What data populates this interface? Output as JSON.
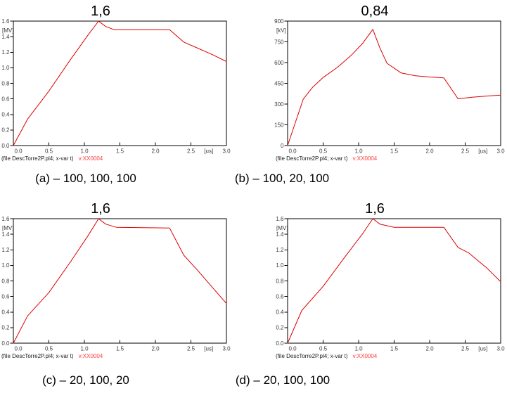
{
  "figure": {
    "background": "#ffffff",
    "trace_color": "#dd0000",
    "variable_text_color": "#ff3b3b",
    "axis_color": "#000000",
    "tick_label_color": "#3a3a3a"
  },
  "chart_data": [
    {
      "id": "a",
      "type": "line",
      "title": "1,6",
      "peak_label": "1,6",
      "y_unit": "[MV]",
      "x_unit": "[us]",
      "xlim": [
        0,
        3
      ],
      "ylim": [
        0,
        1.6
      ],
      "x_tick_values": [
        0,
        0.5,
        1,
        1.5,
        2,
        2.5,
        3
      ],
      "x_tick_labels": [
        "0.0",
        "0.5",
        "1.0",
        "1.5",
        "2.0",
        "2.5",
        "3.0"
      ],
      "y_tick_values": [
        0,
        0.2,
        0.4,
        0.6,
        0.8,
        1.0,
        1.2,
        1.4,
        1.6
      ],
      "y_tick_labels": [
        "0.0",
        "0.2",
        "0.4",
        "0.6",
        "0.8",
        "1.0",
        "1.2",
        "1.4",
        "1.6"
      ],
      "grid": false,
      "legend": "none",
      "file_caption": "(file DescTorre2P.pl4; x-var t)",
      "variable_caption": "v:XX0004",
      "series": [
        {
          "name": "v:XX0004",
          "points": [
            [
              0,
              0
            ],
            [
              0.2,
              0.34
            ],
            [
              0.5,
              0.7
            ],
            [
              0.8,
              1.1
            ],
            [
              1.05,
              1.42
            ],
            [
              1.2,
              1.6
            ],
            [
              1.3,
              1.53
            ],
            [
              1.42,
              1.49
            ],
            [
              1.75,
              1.49
            ],
            [
              2.2,
              1.49
            ],
            [
              2.4,
              1.33
            ],
            [
              2.55,
              1.27
            ],
            [
              2.8,
              1.17
            ],
            [
              3.0,
              1.08
            ]
          ]
        }
      ]
    },
    {
      "id": "b",
      "type": "line",
      "title": "0,84",
      "peak_label": "0,84",
      "y_unit": "[kV]",
      "x_unit": "[us]",
      "xlim": [
        0,
        3
      ],
      "ylim": [
        0,
        900
      ],
      "x_tick_values": [
        0,
        0.5,
        1,
        1.5,
        2,
        2.5,
        3
      ],
      "x_tick_labels": [
        "0.0",
        "0.5",
        "1.0",
        "1.5",
        "2.0",
        "2.5",
        "3.0"
      ],
      "y_tick_values": [
        0,
        150,
        300,
        450,
        600,
        750,
        900
      ],
      "y_tick_labels": [
        "0",
        "150",
        "300",
        "450",
        "600",
        "750",
        "900"
      ],
      "grid": false,
      "legend": "none",
      "file_caption": "(file DescTorre2P.pl4; x-var t)",
      "variable_caption": "v:XX0004",
      "series": [
        {
          "name": "v:XX0004",
          "points": [
            [
              0,
              0
            ],
            [
              0.22,
              335
            ],
            [
              0.35,
              420
            ],
            [
              0.5,
              492
            ],
            [
              0.7,
              565
            ],
            [
              0.9,
              655
            ],
            [
              1.05,
              735
            ],
            [
              1.2,
              840
            ],
            [
              1.3,
              705
            ],
            [
              1.4,
              595
            ],
            [
              1.5,
              560
            ],
            [
              1.6,
              525
            ],
            [
              1.8,
              505
            ],
            [
              2.0,
              496
            ],
            [
              2.2,
              489
            ],
            [
              2.4,
              338
            ],
            [
              2.6,
              350
            ],
            [
              2.8,
              358
            ],
            [
              3.0,
              365
            ]
          ]
        }
      ]
    },
    {
      "id": "c",
      "type": "line",
      "title": "1,6",
      "peak_label": "1,6",
      "y_unit": "[MV]",
      "x_unit": "[us]",
      "xlim": [
        0,
        3
      ],
      "ylim": [
        0,
        1.6
      ],
      "x_tick_values": [
        0,
        0.5,
        1,
        1.5,
        2,
        2.5,
        3
      ],
      "x_tick_labels": [
        "0.0",
        "0.5",
        "1.0",
        "1.5",
        "2.0",
        "2.5",
        "3.0"
      ],
      "y_tick_values": [
        0,
        0.2,
        0.4,
        0.6,
        0.8,
        1.0,
        1.2,
        1.4,
        1.6
      ],
      "y_tick_labels": [
        "0.0",
        "0.2",
        "0.4",
        "0.6",
        "0.8",
        "1.0",
        "1.2",
        "1.4",
        "1.6"
      ],
      "grid": false,
      "legend": "none",
      "file_caption": "(file DescTorre2P.pl4; x-var t)",
      "variable_caption": "v:XX0004",
      "series": [
        {
          "name": "v:XX0004",
          "points": [
            [
              0,
              0
            ],
            [
              0.2,
              0.35
            ],
            [
              0.5,
              0.65
            ],
            [
              0.8,
              1.04
            ],
            [
              1.05,
              1.38
            ],
            [
              1.2,
              1.6
            ],
            [
              1.3,
              1.53
            ],
            [
              1.45,
              1.49
            ],
            [
              2.2,
              1.48
            ],
            [
              2.4,
              1.13
            ],
            [
              2.6,
              0.93
            ],
            [
              2.8,
              0.72
            ],
            [
              3.0,
              0.51
            ]
          ]
        }
      ]
    },
    {
      "id": "d",
      "type": "line",
      "title": "1,6",
      "peak_label": "1,6",
      "y_unit": "[MV]",
      "x_unit": "[us]",
      "xlim": [
        0,
        3
      ],
      "ylim": [
        0,
        1.6
      ],
      "x_tick_values": [
        0,
        0.5,
        1,
        1.5,
        2,
        2.5,
        3
      ],
      "x_tick_labels": [
        "0.0",
        "0.5",
        "1.0",
        "1.5",
        "2.0",
        "2.5",
        "3.0"
      ],
      "y_tick_values": [
        0,
        0.2,
        0.4,
        0.6,
        0.8,
        1.0,
        1.2,
        1.4,
        1.6
      ],
      "y_tick_labels": [
        "0.0",
        "0.2",
        "0.4",
        "0.6",
        "0.8",
        "1.0",
        "1.2",
        "1.4",
        "1.6"
      ],
      "grid": false,
      "legend": "none",
      "file_caption": "(file DescTorre2P.pl4; x-var t)",
      "variable_caption": "v:XX0004",
      "series": [
        {
          "name": "v:XX0004",
          "points": [
            [
              0,
              0
            ],
            [
              0.2,
              0.42
            ],
            [
              0.5,
              0.73
            ],
            [
              0.8,
              1.1
            ],
            [
              1.05,
              1.4
            ],
            [
              1.2,
              1.6
            ],
            [
              1.3,
              1.53
            ],
            [
              1.5,
              1.49
            ],
            [
              2.2,
              1.49
            ],
            [
              2.4,
              1.23
            ],
            [
              2.55,
              1.16
            ],
            [
              2.8,
              0.97
            ],
            [
              3.0,
              0.79
            ]
          ]
        }
      ]
    }
  ],
  "figure_captions": [
    {
      "text": "(a) – 100, 100, 100"
    },
    {
      "text": "(b) – 100, 20, 100"
    },
    {
      "text": "(c) – 20, 100, 20"
    },
    {
      "text": "(d) – 20, 100, 100"
    }
  ]
}
